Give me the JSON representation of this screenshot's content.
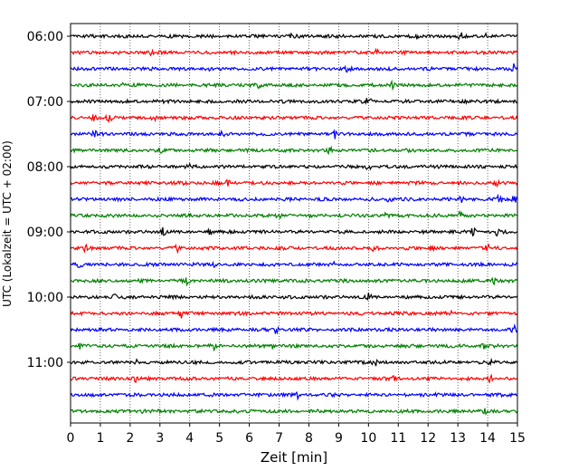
{
  "chart_data": {
    "type": "line",
    "title": "",
    "xlabel": "Zeit  [min]",
    "ylabel": "UTC (Lokalzeit = UTC + 02:00)",
    "xlim": [
      0,
      15
    ],
    "x_ticks": [
      0,
      1,
      2,
      3,
      4,
      5,
      6,
      7,
      8,
      9,
      10,
      11,
      12,
      13,
      14,
      15
    ],
    "x_grid": true,
    "y_grid": false,
    "y_ticks": [
      "06:00",
      "07:00",
      "08:00",
      "09:00",
      "10:00",
      "11:00"
    ],
    "trace_start": "06:00",
    "trace_interval_min": 15,
    "traces": [
      {
        "start": "06:00",
        "color": "#000000",
        "events": [
          {
            "t": 7.4,
            "a": 0.25
          },
          {
            "t": 11.6,
            "a": 0.3
          },
          {
            "t": 13.1,
            "a": 0.4
          },
          {
            "t": 14.0,
            "a": 0.35
          }
        ]
      },
      {
        "start": "06:15",
        "color": "#ff0000",
        "events": [
          {
            "t": 2.7,
            "a": 0.3
          },
          {
            "t": 10.3,
            "a": 0.55
          }
        ]
      },
      {
        "start": "06:30",
        "color": "#0000ff",
        "events": [
          {
            "t": 4.6,
            "a": 0.25
          },
          {
            "t": 9.3,
            "a": 0.5
          },
          {
            "t": 14.9,
            "a": 0.55
          }
        ]
      },
      {
        "start": "06:45",
        "color": "#008000",
        "events": [
          {
            "t": 1.7,
            "a": 0.25
          },
          {
            "t": 6.3,
            "a": 0.3
          },
          {
            "t": 10.8,
            "a": 0.35
          }
        ]
      },
      {
        "start": "07:00",
        "color": "#000000",
        "events": [
          {
            "t": 10.0,
            "a": 0.55
          },
          {
            "t": 13.2,
            "a": 0.3
          }
        ]
      },
      {
        "start": "07:15",
        "color": "#ff0000",
        "events": [
          {
            "t": 0.8,
            "a": 0.5
          },
          {
            "t": 1.3,
            "a": 0.4
          },
          {
            "t": 2.8,
            "a": 0.55
          }
        ]
      },
      {
        "start": "07:30",
        "color": "#0000ff",
        "events": [
          {
            "t": 0.8,
            "a": 0.3
          },
          {
            "t": 5.1,
            "a": 0.35
          },
          {
            "t": 8.9,
            "a": 0.55
          }
        ]
      },
      {
        "start": "07:45",
        "color": "#008000",
        "events": [
          {
            "t": 3.0,
            "a": 0.4
          },
          {
            "t": 8.7,
            "a": 0.3
          }
        ]
      },
      {
        "start": "08:00",
        "color": "#000000",
        "events": [
          {
            "t": 4.0,
            "a": 0.3
          },
          {
            "t": 10.0,
            "a": 0.45
          }
        ]
      },
      {
        "start": "08:15",
        "color": "#ff0000",
        "events": [
          {
            "t": 3.9,
            "a": 0.5
          },
          {
            "t": 5.3,
            "a": 0.3
          },
          {
            "t": 14.3,
            "a": 0.45
          }
        ]
      },
      {
        "start": "08:30",
        "color": "#0000ff",
        "events": [
          {
            "t": 10.7,
            "a": 0.45
          },
          {
            "t": 13.1,
            "a": 0.4
          },
          {
            "t": 14.4,
            "a": 0.5
          },
          {
            "t": 14.9,
            "a": 0.45
          }
        ]
      },
      {
        "start": "08:45",
        "color": "#008000",
        "events": [
          {
            "t": 7.0,
            "a": 0.35
          },
          {
            "t": 10.6,
            "a": 0.4
          },
          {
            "t": 13.1,
            "a": 0.5
          }
        ]
      },
      {
        "start": "09:00",
        "color": "#000000",
        "events": [
          {
            "t": 3.1,
            "a": 0.45
          },
          {
            "t": 4.7,
            "a": 0.3
          },
          {
            "t": 13.5,
            "a": 0.55
          },
          {
            "t": 14.3,
            "a": 0.35
          }
        ]
      },
      {
        "start": "09:15",
        "color": "#ff0000",
        "events": [
          {
            "t": 0.5,
            "a": 0.4
          },
          {
            "t": 3.6,
            "a": 0.45
          },
          {
            "t": 10.2,
            "a": 0.4
          },
          {
            "t": 12.1,
            "a": 0.55
          },
          {
            "t": 14.0,
            "a": 0.45
          }
        ]
      },
      {
        "start": "09:30",
        "color": "#0000ff",
        "events": [
          {
            "t": 0.3,
            "a": 0.3
          },
          {
            "t": 4.8,
            "a": 0.35
          },
          {
            "t": 8.8,
            "a": 0.3
          }
        ]
      },
      {
        "start": "09:45",
        "color": "#008000",
        "events": [
          {
            "t": 3.9,
            "a": 0.4
          },
          {
            "t": 14.2,
            "a": 0.45
          }
        ]
      },
      {
        "start": "10:00",
        "color": "#000000",
        "events": [
          {
            "t": 1.5,
            "a": 0.35
          },
          {
            "t": 10.0,
            "a": 0.45
          }
        ]
      },
      {
        "start": "10:15",
        "color": "#ff0000",
        "events": [
          {
            "t": 3.7,
            "a": 0.55
          },
          {
            "t": 12.8,
            "a": 0.3
          }
        ]
      },
      {
        "start": "10:30",
        "color": "#0000ff",
        "events": [
          {
            "t": 6.9,
            "a": 0.5
          },
          {
            "t": 14.9,
            "a": 0.4
          }
        ]
      },
      {
        "start": "10:45",
        "color": "#008000",
        "events": [
          {
            "t": 0.3,
            "a": 0.35
          },
          {
            "t": 4.8,
            "a": 0.4
          },
          {
            "t": 6.8,
            "a": 0.45
          },
          {
            "t": 13.9,
            "a": 0.45
          }
        ]
      },
      {
        "start": "11:00",
        "color": "#000000",
        "events": [
          {
            "t": 2.2,
            "a": 0.3
          },
          {
            "t": 10.2,
            "a": 0.55
          },
          {
            "t": 14.1,
            "a": 0.35
          }
        ]
      },
      {
        "start": "11:15",
        "color": "#ff0000",
        "events": [
          {
            "t": 2.2,
            "a": 0.45
          },
          {
            "t": 10.9,
            "a": 0.55
          },
          {
            "t": 14.1,
            "a": 0.5
          }
        ]
      },
      {
        "start": "11:30",
        "color": "#0000ff",
        "events": [
          {
            "t": 7.6,
            "a": 0.4
          },
          {
            "t": 12.3,
            "a": 0.3
          }
        ]
      },
      {
        "start": "11:45",
        "color": "#008000",
        "events": [
          {
            "t": 2.4,
            "a": 0.25
          },
          {
            "t": 13.9,
            "a": 0.5
          }
        ]
      }
    ]
  }
}
